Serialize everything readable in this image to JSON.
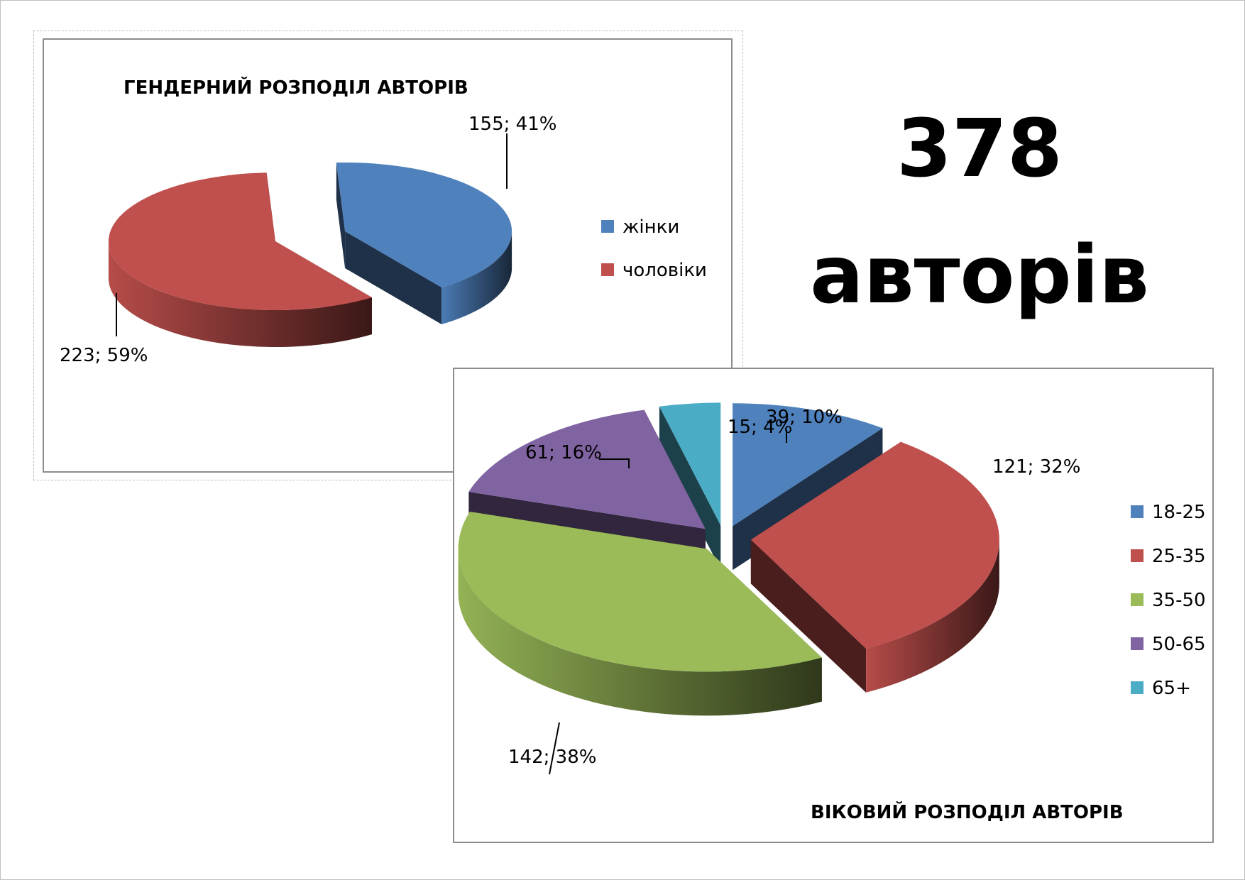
{
  "summary": {
    "total": "378",
    "caption": "авторів"
  },
  "chart_data": [
    {
      "type": "pie",
      "style": "3d-exploded",
      "title": "ГЕНДЕРНИЙ РОЗПОДІЛ АВТОРІВ",
      "legend_position": "right",
      "categories": [
        "жінки",
        "чоловіки"
      ],
      "values": [
        155,
        223
      ],
      "percent": [
        41,
        59
      ],
      "labels": [
        "155; 41%",
        "223; 59%"
      ],
      "colors": [
        "#4F81BD",
        "#C0504D"
      ]
    },
    {
      "type": "pie",
      "style": "3d-exploded",
      "title": "ВІКОВИЙ РОЗПОДІЛ АВТОРІВ",
      "legend_position": "right",
      "categories": [
        "18-25",
        "25-35",
        "35-50",
        "50-65",
        "65+"
      ],
      "values": [
        39,
        121,
        142,
        61,
        15
      ],
      "percent": [
        10,
        32,
        38,
        16,
        4
      ],
      "labels": [
        "39; 10%",
        "121; 32%",
        "142; 38%",
        "61; 16%",
        "15; 4%"
      ],
      "colors": [
        "#4F81BD",
        "#C0504D",
        "#9BBB59",
        "#8064A2",
        "#4BACC6"
      ]
    }
  ]
}
